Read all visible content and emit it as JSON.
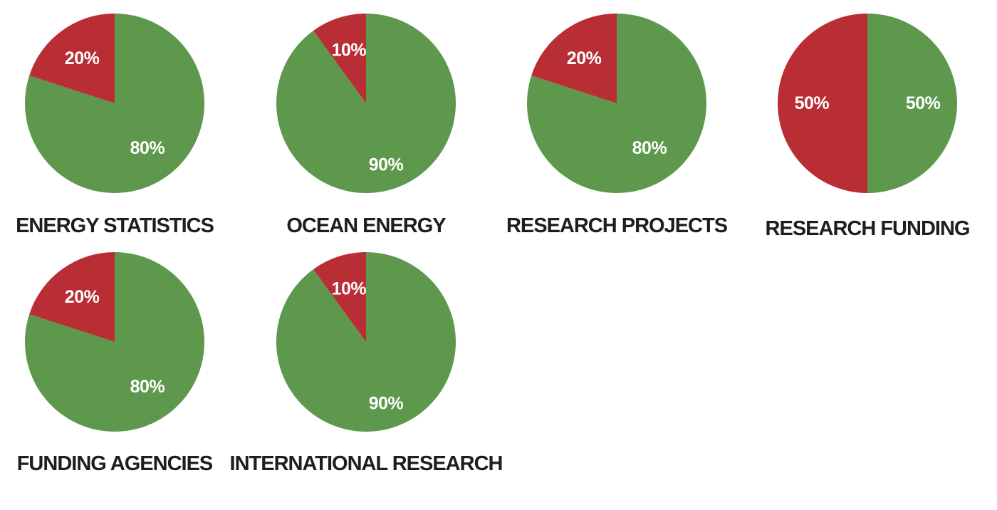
{
  "chart_data": [
    {
      "type": "pie",
      "title": "ENERGY STATISTICS",
      "slices": [
        {
          "label": "80%",
          "value": 80,
          "color": "#5d984c"
        },
        {
          "label": "20%",
          "value": 20,
          "color": "#b92d35"
        }
      ]
    },
    {
      "type": "pie",
      "title": "OCEAN ENERGY",
      "slices": [
        {
          "label": "90%",
          "value": 90,
          "color": "#5d984c"
        },
        {
          "label": "10%",
          "value": 10,
          "color": "#b92d35"
        }
      ]
    },
    {
      "type": "pie",
      "title": "RESEARCH PROJECTS",
      "slices": [
        {
          "label": "80%",
          "value": 80,
          "color": "#5d984c"
        },
        {
          "label": "20%",
          "value": 20,
          "color": "#b92d35"
        }
      ]
    },
    {
      "type": "pie",
      "title": "RESEARCH FUNDING",
      "slices": [
        {
          "label": "50%",
          "value": 50,
          "color": "#5d984c"
        },
        {
          "label": "50%",
          "value": 50,
          "color": "#b92d35"
        }
      ]
    },
    {
      "type": "pie",
      "title": "FUNDING AGENCIES",
      "slices": [
        {
          "label": "80%",
          "value": 80,
          "color": "#5d984c"
        },
        {
          "label": "20%",
          "value": 20,
          "color": "#b92d35"
        }
      ]
    },
    {
      "type": "pie",
      "title": "INTERNATIONAL RESEARCH",
      "slices": [
        {
          "label": "90%",
          "value": 90,
          "color": "#5d984c"
        },
        {
          "label": "10%",
          "value": 10,
          "color": "#b92d35"
        }
      ]
    }
  ]
}
